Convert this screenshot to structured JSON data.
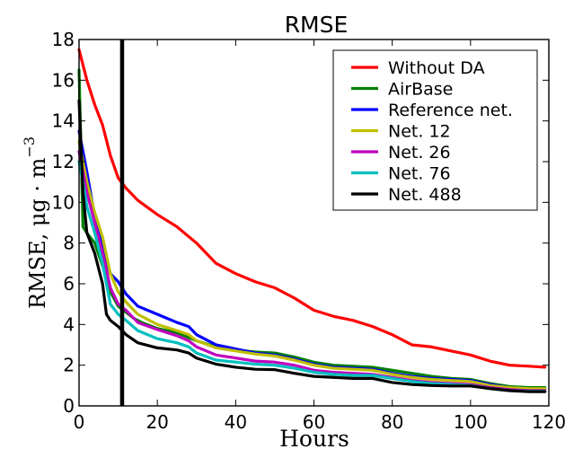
{
  "chart_data": {
    "type": "line",
    "title": "RMSE",
    "xlabel": "Hours",
    "ylabel": "RMSE,  μg · m",
    "ylabel_exponent": "−3",
    "xlim": [
      0,
      120
    ],
    "ylim": [
      0,
      18
    ],
    "xticks": [
      0,
      20,
      40,
      60,
      80,
      100,
      120
    ],
    "yticks": [
      0,
      2,
      4,
      6,
      8,
      10,
      12,
      14,
      16,
      18
    ],
    "grid": false,
    "legend_position": "top-right",
    "vertical_marker_x": 11,
    "series": [
      {
        "name": "Without DA",
        "color": "#ff0000",
        "x": [
          0,
          2,
          4,
          6,
          8,
          10,
          12,
          15,
          20,
          25,
          30,
          35,
          40,
          45,
          50,
          55,
          60,
          65,
          70,
          75,
          80,
          85,
          90,
          95,
          100,
          105,
          110,
          115,
          119
        ],
        "y": [
          17.5,
          16.0,
          14.8,
          13.8,
          12.3,
          11.2,
          10.7,
          10.1,
          9.4,
          8.8,
          8.0,
          7.0,
          6.5,
          6.1,
          5.8,
          5.3,
          4.7,
          4.4,
          4.2,
          3.9,
          3.5,
          3.0,
          2.9,
          2.7,
          2.5,
          2.2,
          2.0,
          1.95,
          1.9
        ]
      },
      {
        "name": "AirBase",
        "color": "#008000",
        "x": [
          0,
          1,
          2,
          4,
          6,
          8,
          10,
          12,
          14,
          16,
          20,
          25,
          30,
          35,
          40,
          45,
          50,
          55,
          60,
          65,
          70,
          75,
          80,
          85,
          90,
          95,
          100,
          105,
          110,
          115,
          119
        ],
        "y": [
          16.5,
          8.8,
          8.5,
          8.0,
          6.9,
          5.6,
          4.9,
          4.6,
          4.3,
          4.1,
          3.8,
          3.6,
          3.2,
          2.9,
          2.75,
          2.65,
          2.6,
          2.4,
          2.15,
          2.0,
          1.95,
          1.9,
          1.75,
          1.6,
          1.45,
          1.35,
          1.3,
          1.1,
          0.95,
          0.9,
          0.9
        ]
      },
      {
        "name": "Reference net.",
        "color": "#0000ff",
        "x": [
          0,
          1,
          2,
          4,
          6,
          8,
          10,
          12,
          15,
          20,
          25,
          28,
          30,
          35,
          40,
          45,
          50,
          55,
          60,
          65,
          70,
          75,
          80,
          85,
          90,
          95,
          100,
          105,
          110,
          115,
          119
        ],
        "y": [
          13.5,
          12.5,
          11.5,
          9.3,
          7.8,
          6.5,
          6.1,
          5.5,
          4.9,
          4.5,
          4.1,
          3.9,
          3.5,
          3.0,
          2.8,
          2.6,
          2.5,
          2.3,
          2.05,
          1.9,
          1.85,
          1.8,
          1.6,
          1.45,
          1.35,
          1.3,
          1.25,
          1.05,
          0.9,
          0.85,
          0.85
        ]
      },
      {
        "name": "Net. 12",
        "color": "#bfbf00",
        "x": [
          0,
          1,
          2,
          4,
          6,
          8,
          10,
          12,
          15,
          20,
          25,
          28,
          30,
          35,
          40,
          45,
          50,
          55,
          60,
          65,
          70,
          75,
          80,
          85,
          90,
          95,
          100,
          105,
          110,
          115,
          119
        ],
        "y": [
          13.0,
          12.0,
          11.0,
          9.5,
          8.3,
          6.5,
          5.6,
          5.1,
          4.5,
          4.0,
          3.7,
          3.5,
          3.2,
          2.85,
          2.7,
          2.55,
          2.45,
          2.25,
          2.0,
          1.85,
          1.8,
          1.75,
          1.55,
          1.4,
          1.3,
          1.25,
          1.2,
          1.0,
          0.9,
          0.85,
          0.85
        ]
      },
      {
        "name": "Net. 26",
        "color": "#bf00bf",
        "x": [
          0,
          1,
          2,
          4,
          6,
          8,
          10,
          12,
          15,
          20,
          25,
          28,
          30,
          35,
          40,
          45,
          50,
          55,
          60,
          65,
          70,
          75,
          80,
          85,
          90,
          95,
          100,
          105,
          110,
          115,
          119
        ],
        "y": [
          12.5,
          11.5,
          10.5,
          9.0,
          7.5,
          5.8,
          5.0,
          4.7,
          4.1,
          3.75,
          3.45,
          3.2,
          2.9,
          2.5,
          2.35,
          2.2,
          2.15,
          2.0,
          1.75,
          1.65,
          1.6,
          1.55,
          1.4,
          1.25,
          1.15,
          1.1,
          1.05,
          0.9,
          0.8,
          0.75,
          0.75
        ]
      },
      {
        "name": "Net. 76",
        "color": "#00bfbf",
        "x": [
          0,
          1,
          2,
          4,
          6,
          8,
          10,
          12,
          15,
          20,
          25,
          28,
          30,
          35,
          40,
          45,
          50,
          55,
          60,
          65,
          70,
          75,
          80,
          85,
          90,
          95,
          100,
          105,
          110,
          115,
          119
        ],
        "y": [
          12.0,
          11.0,
          9.8,
          8.5,
          7.0,
          5.0,
          4.5,
          4.2,
          3.7,
          3.3,
          3.1,
          2.9,
          2.6,
          2.25,
          2.15,
          2.05,
          2.0,
          1.85,
          1.65,
          1.55,
          1.5,
          1.5,
          1.35,
          1.2,
          1.1,
          1.05,
          1.0,
          0.85,
          0.75,
          0.72,
          0.72
        ]
      },
      {
        "name": "Net. 488",
        "color": "#000000",
        "x": [
          0,
          1,
          2,
          4,
          6,
          7,
          8,
          10,
          12,
          15,
          20,
          25,
          28,
          30,
          35,
          40,
          45,
          50,
          55,
          60,
          65,
          70,
          75,
          80,
          85,
          90,
          95,
          100,
          105,
          110,
          115,
          119
        ],
        "y": [
          15.0,
          10.5,
          8.5,
          7.5,
          6.0,
          4.5,
          4.2,
          3.9,
          3.5,
          3.1,
          2.85,
          2.75,
          2.6,
          2.35,
          2.05,
          1.9,
          1.8,
          1.78,
          1.6,
          1.45,
          1.4,
          1.35,
          1.35,
          1.15,
          1.05,
          1.0,
          0.98,
          0.98,
          0.85,
          0.75,
          0.7,
          0.7
        ]
      }
    ]
  }
}
